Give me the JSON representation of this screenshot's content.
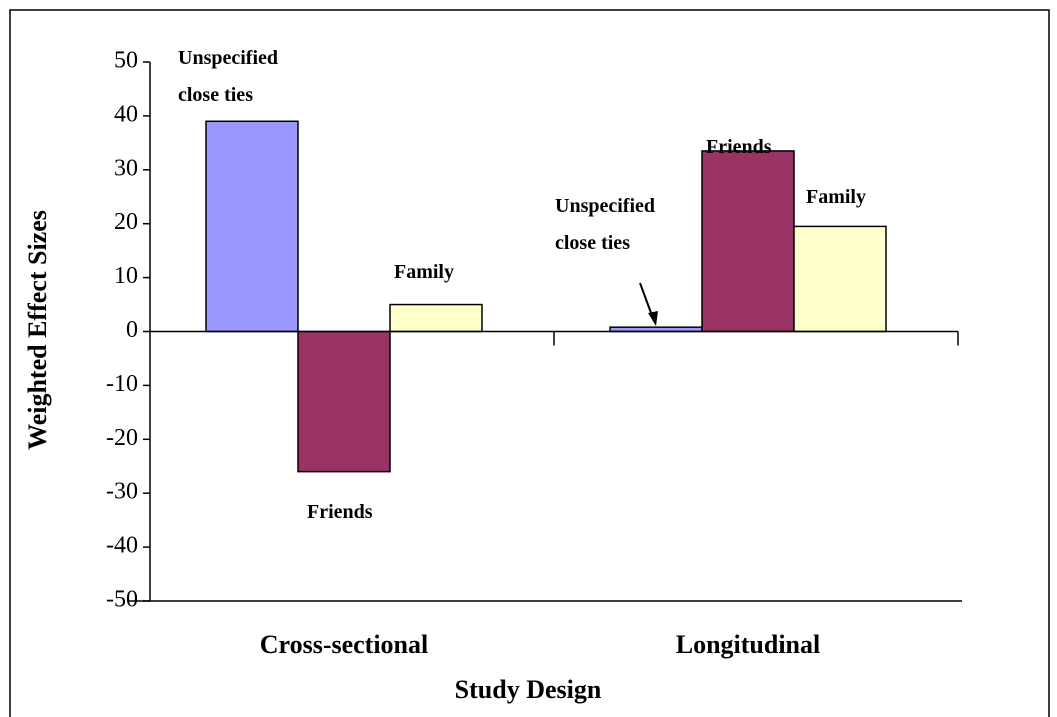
{
  "chart_data": {
    "type": "bar",
    "categories": [
      "Cross-sectional",
      "Longitudinal"
    ],
    "series": [
      {
        "name": "Unspecified close ties",
        "color": "#9999ff",
        "values": [
          39,
          0.8
        ]
      },
      {
        "name": "Friends",
        "color": "#993366",
        "values": [
          -26,
          33.5
        ]
      },
      {
        "name": "Family",
        "color": "#ffffcc",
        "values": [
          5,
          19.5
        ]
      }
    ],
    "ylim": [
      -50,
      50
    ],
    "yticks": [
      -50,
      -40,
      -30,
      -20,
      -10,
      0,
      10,
      20,
      30,
      40,
      50
    ],
    "xlabel": "Study Design",
    "ylabel": "Weighted Effect Sizes"
  }
}
